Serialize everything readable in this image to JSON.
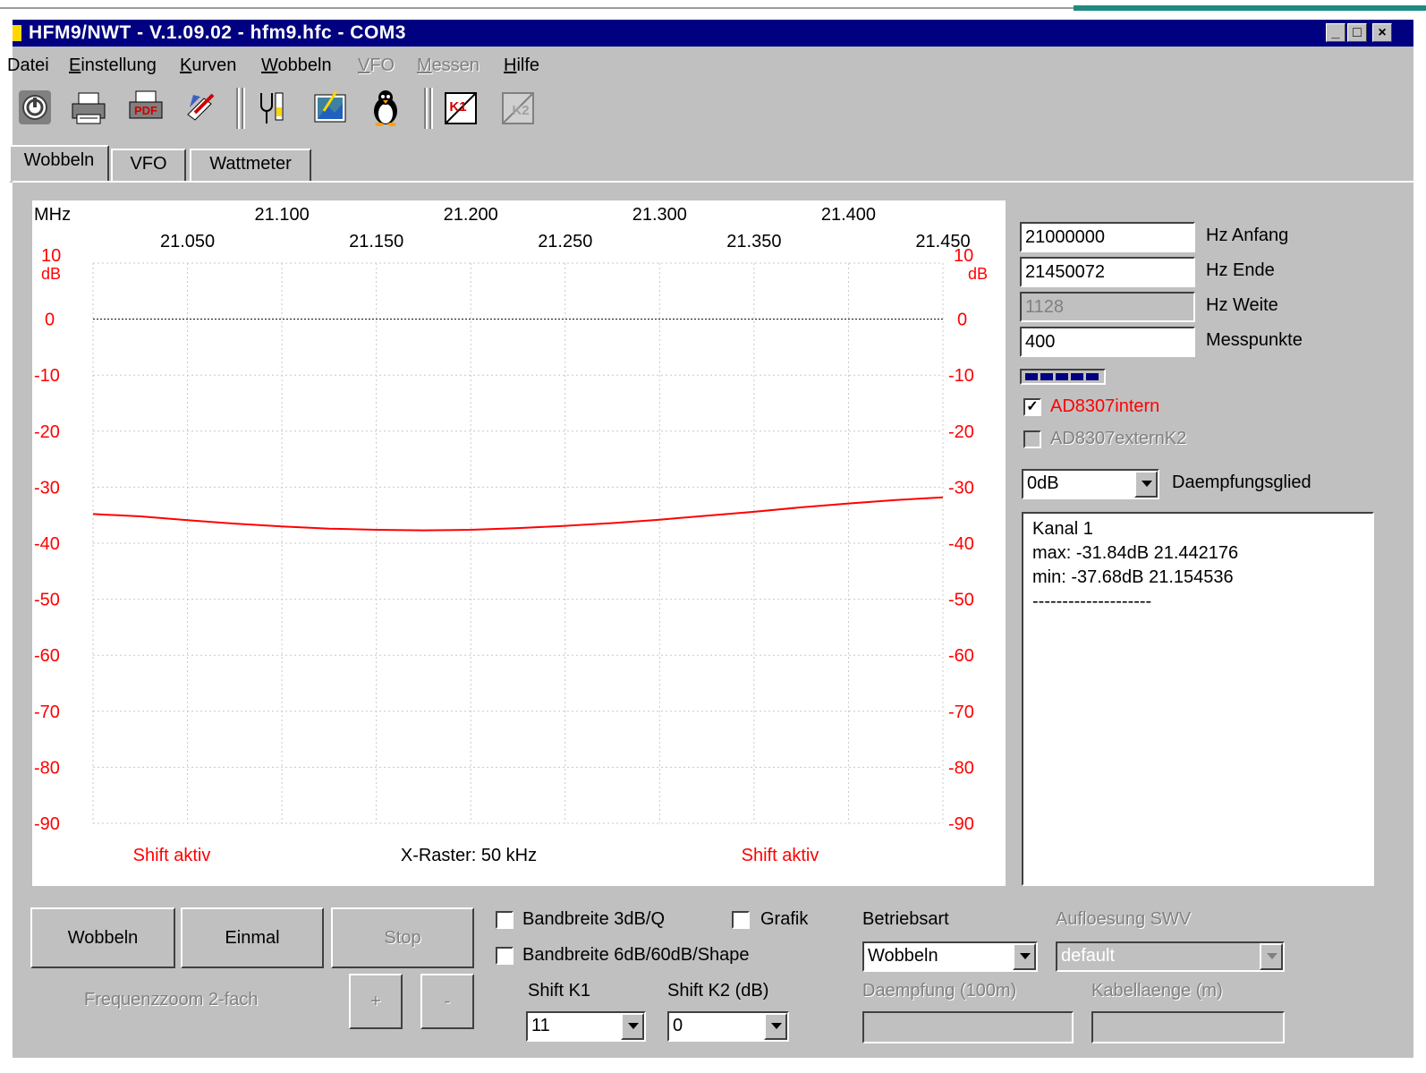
{
  "window": {
    "title": "HFM9/NWT - V.1.09.02 - hfm9.hfc - COM3",
    "minimize": "_",
    "maximize": "□",
    "close": "×"
  },
  "menu": [
    {
      "label": "Datei",
      "enabled": true
    },
    {
      "label": "Einstellung",
      "enabled": true
    },
    {
      "label": "Kurven",
      "enabled": true
    },
    {
      "label": "Wobbeln",
      "enabled": true
    },
    {
      "label": "VFO",
      "enabled": false
    },
    {
      "label": "Messen",
      "enabled": false
    },
    {
      "label": "Hilfe",
      "enabled": true
    }
  ],
  "toolbar": {
    "icons": [
      "power-icon",
      "print-icon",
      "pdf-icon",
      "edit-icon",
      "tools-icon",
      "image-icon",
      "penguin-icon",
      "k1-icon",
      "k2-icon"
    ],
    "pdf_label": "PDF",
    "k1_label": "K1",
    "k2_label": "K2"
  },
  "tabs": [
    {
      "label": "Wobbeln",
      "active": true
    },
    {
      "label": "VFO",
      "active": false
    },
    {
      "label": "Wattmeter",
      "active": false
    }
  ],
  "chart_data": {
    "type": "line",
    "x_unit_label": "MHz",
    "x_ticks_top": [
      "21.100",
      "21.200",
      "21.300",
      "21.400"
    ],
    "x_ticks_bottom": [
      "21.050",
      "21.150",
      "21.250",
      "21.350",
      "21.450"
    ],
    "y_ticks": [
      "10",
      "0",
      "-10",
      "-20",
      "-30",
      "-40",
      "-50",
      "-60",
      "-70",
      "-80",
      "-90"
    ],
    "y_unit_label": "dB",
    "xlim": [
      21.0,
      21.45
    ],
    "ylim": [
      -90,
      10
    ],
    "grid": true,
    "footer_left": "Shift aktiv",
    "footer_center": "X-Raster: 50 kHz",
    "footer_right": "Shift aktiv",
    "series": [
      {
        "color": "#ff0000",
        "x": [
          21.0,
          21.025,
          21.05,
          21.075,
          21.1,
          21.125,
          21.15,
          21.175,
          21.2,
          21.225,
          21.25,
          21.275,
          21.3,
          21.325,
          21.35,
          21.375,
          21.4,
          21.425,
          21.45
        ],
        "y": [
          -34.8,
          -35.2,
          -35.9,
          -36.5,
          -37.0,
          -37.4,
          -37.6,
          -37.7,
          -37.6,
          -37.3,
          -36.9,
          -36.4,
          -35.8,
          -35.1,
          -34.4,
          -33.6,
          -32.9,
          -32.3,
          -31.8
        ]
      }
    ]
  },
  "freq": {
    "start_value": "21000000",
    "start_label": "Hz Anfang",
    "end_value": "21450072",
    "end_label": "Hz Ende",
    "width_value": "1128",
    "width_label": "Hz Weite",
    "points_value": "400",
    "points_label": "Messpunkte"
  },
  "checks": {
    "ad_intern_label": "AD8307intern",
    "ad_intern_checked": "✓",
    "ad_extern_label": "AD8307externK2"
  },
  "attenuator": {
    "value": "0dB",
    "label": "Daempfungsglied"
  },
  "memo": [
    "Kanal 1",
    "max: -31.84dB 21.442176",
    "min: -37.68dB 21.154536",
    "--------------------"
  ],
  "buttons": {
    "wobbeln": "Wobbeln",
    "einmal": "Einmal",
    "stop": "Stop",
    "zoom_label": "Frequenzzoom 2-fach",
    "plus": "+",
    "minus": "-"
  },
  "options": {
    "bw3": "Bandbreite 3dB/Q",
    "bw6": "Bandbreite 6dB/60dB/Shape",
    "grafik": "Grafik",
    "shift_k1_label": "Shift K1",
    "shift_k1_value": "11",
    "shift_k2_label": "Shift K2 (dB)",
    "shift_k2_value": "0"
  },
  "mode": {
    "label": "Betriebsart",
    "value": "Wobbeln",
    "swr_label": "Aufloesung SWV",
    "swr_value": "default",
    "damping_label": "Daempfung (100m)",
    "cable_label": "Kabellaenge (m)"
  }
}
